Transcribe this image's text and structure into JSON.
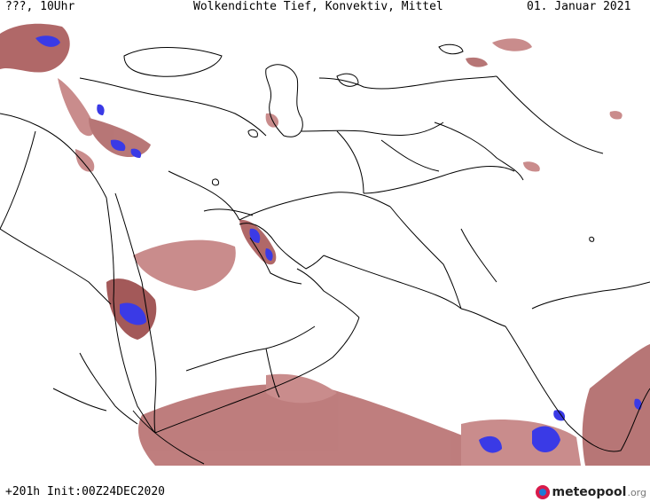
{
  "header": {
    "left": "???, 10Uhr",
    "title": "Wolkendichte  Tief, Konvektiv, Mittel",
    "date": "01. Januar 2021"
  },
  "footer": {
    "init": "+201h Init:00Z24DEC2020",
    "logo_brand": "meteopool",
    "logo_tld": ".org"
  },
  "colors": {
    "cloud_light": "#d8a0a0",
    "cloud_mid": "#b06868",
    "cloud_dark": "#8a3a3a",
    "convective": "#3a3ae6",
    "border": "#000000"
  }
}
